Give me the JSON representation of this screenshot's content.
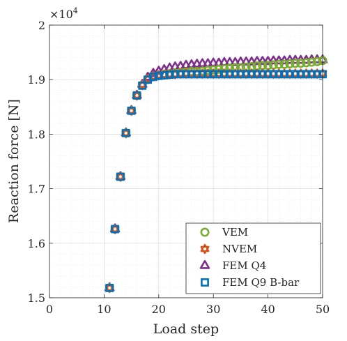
{
  "chart_data": {
    "type": "scatter",
    "title": "",
    "xlabel": "Load step",
    "ylabel": "Reaction force [N]",
    "y_exponent_label": "×10",
    "y_exponent_power": "4",
    "xlim": [
      0,
      50
    ],
    "ylim": [
      1.5,
      2.0
    ],
    "y_scale_factor": 10000,
    "x_ticks": [
      "0",
      "10",
      "20",
      "30",
      "40",
      "50"
    ],
    "y_ticks": [
      "1.5",
      "1.6",
      "1.7",
      "1.8",
      "1.9",
      "2"
    ],
    "grid": true,
    "minor_grid": true,
    "legend_position": "bottom-right",
    "series": [
      {
        "name": "VEM",
        "marker": "circle",
        "color": "#77AC30",
        "x": [
          11,
          12,
          13,
          14,
          15,
          16,
          17,
          18,
          19,
          20,
          21,
          22,
          23,
          24,
          25,
          26,
          27,
          28,
          29,
          30,
          31,
          32,
          33,
          34,
          35,
          36,
          37,
          38,
          39,
          40,
          41,
          42,
          43,
          44,
          45,
          46,
          47,
          48,
          49,
          50
        ],
        "y": [
          1.518,
          1.626,
          1.722,
          1.802,
          1.843,
          1.871,
          1.89,
          1.901,
          1.906,
          1.908,
          1.91,
          1.911,
          1.912,
          1.913,
          1.914,
          1.915,
          1.915,
          1.916,
          1.917,
          1.918,
          1.919,
          1.92,
          1.921,
          1.922,
          1.922,
          1.923,
          1.924,
          1.925,
          1.926,
          1.926,
          1.927,
          1.928,
          1.928,
          1.929,
          1.93,
          1.93,
          1.931,
          1.932,
          1.933,
          1.935
        ]
      },
      {
        "name": "NVEM",
        "marker": "hexagram",
        "color": "#D95319",
        "x": [
          11,
          12,
          13,
          14,
          15,
          16,
          17,
          18,
          19,
          20,
          21,
          22,
          23,
          24,
          25,
          26,
          27,
          28,
          29,
          30,
          31,
          32,
          33,
          34,
          35,
          36,
          37,
          38,
          39,
          40,
          41,
          42,
          43,
          44,
          45,
          46,
          47,
          48,
          49,
          50
        ],
        "y": [
          1.518,
          1.626,
          1.722,
          1.802,
          1.843,
          1.871,
          1.89,
          1.901,
          1.906,
          1.908,
          1.909,
          1.91,
          1.91,
          1.911,
          1.911,
          1.911,
          1.911,
          1.911,
          1.911,
          1.911,
          1.911,
          1.911,
          1.911,
          1.911,
          1.911,
          1.911,
          1.911,
          1.911,
          1.911,
          1.911,
          1.911,
          1.911,
          1.911,
          1.911,
          1.911,
          1.911,
          1.911,
          1.911,
          1.911,
          1.911
        ]
      },
      {
        "name": "FEM Q4",
        "marker": "triangle",
        "color": "#7E2F8E",
        "x": [
          11,
          12,
          13,
          14,
          15,
          16,
          17,
          18,
          19,
          20,
          21,
          22,
          23,
          24,
          25,
          26,
          27,
          28,
          29,
          30,
          31,
          32,
          33,
          34,
          35,
          36,
          37,
          38,
          39,
          40,
          41,
          42,
          43,
          44,
          45,
          46,
          47,
          48,
          49,
          50
        ],
        "y": [
          1.518,
          1.626,
          1.722,
          1.802,
          1.843,
          1.871,
          1.891,
          1.904,
          1.911,
          1.915,
          1.918,
          1.921,
          1.923,
          1.924,
          1.926,
          1.927,
          1.928,
          1.929,
          1.929,
          1.93,
          1.93,
          1.931,
          1.931,
          1.931,
          1.932,
          1.932,
          1.932,
          1.933,
          1.933,
          1.933,
          1.934,
          1.934,
          1.934,
          1.935,
          1.935,
          1.935,
          1.935,
          1.936,
          1.936,
          1.936
        ]
      },
      {
        "name": "FEM Q9 B-bar",
        "marker": "square",
        "color": "#0072BD",
        "x": [
          11,
          12,
          13,
          14,
          15,
          16,
          17,
          18,
          19,
          20,
          21,
          22,
          23,
          24,
          25,
          26,
          27,
          28,
          29,
          30,
          31,
          32,
          33,
          34,
          35,
          36,
          37,
          38,
          39,
          40,
          41,
          42,
          43,
          44,
          45,
          46,
          47,
          48,
          49,
          50
        ],
        "y": [
          1.518,
          1.626,
          1.722,
          1.802,
          1.843,
          1.871,
          1.889,
          1.9,
          1.905,
          1.907,
          1.908,
          1.909,
          1.91,
          1.91,
          1.91,
          1.91,
          1.91,
          1.91,
          1.91,
          1.91,
          1.91,
          1.91,
          1.91,
          1.91,
          1.91,
          1.91,
          1.91,
          1.91,
          1.91,
          1.91,
          1.91,
          1.91,
          1.91,
          1.91,
          1.91,
          1.91,
          1.91,
          1.91,
          1.91,
          1.91
        ]
      }
    ]
  }
}
